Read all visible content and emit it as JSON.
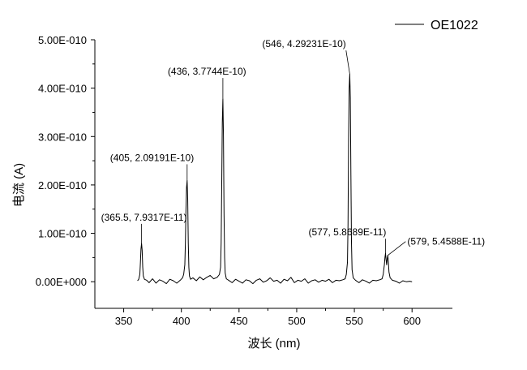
{
  "chart_data": {
    "type": "line",
    "xlabel": "波长 (nm)",
    "ylabel": "电流 (A)",
    "xlim": [
      325,
      635
    ],
    "ylim": [
      -5.5e-11,
      5e-10
    ],
    "x_ticks": [
      350,
      400,
      450,
      500,
      550,
      600
    ],
    "x_tick_labels": [
      "350",
      "400",
      "450",
      "500",
      "550",
      "600"
    ],
    "y_ticks": [
      0,
      1e-10,
      2e-10,
      3e-10,
      4e-10,
      5e-10
    ],
    "y_tick_labels": [
      "0.00E+000",
      "1.00E-010",
      "2.00E-010",
      "3.00E-010",
      "4.00E-010",
      "5.00E-010"
    ],
    "grid": false,
    "legend_position": "top-right",
    "series": [
      {
        "name": "OE1022",
        "color": "#000000",
        "x": [
          362,
          363,
          364,
          364.5,
          365,
          365.5,
          366,
          366.5,
          367,
          368,
          370,
          372,
          375,
          378,
          381,
          384,
          387,
          390,
          393,
          396,
          399,
          401,
          402,
          403,
          403.5,
          404,
          404.5,
          405,
          405.5,
          406,
          406.5,
          407,
          408,
          410,
          413,
          416,
          419,
          422,
          425,
          428,
          431,
          433,
          434,
          434.5,
          435,
          435.5,
          436,
          436.5,
          437,
          437.5,
          438,
          439,
          441,
          444,
          447,
          450,
          453,
          456,
          459,
          462,
          465,
          468,
          471,
          474,
          477,
          480,
          483,
          486,
          489,
          492,
          495,
          498,
          501,
          504,
          507,
          510,
          513,
          516,
          519,
          522,
          525,
          528,
          531,
          534,
          537,
          540,
          542,
          543,
          544,
          544.5,
          545,
          545.5,
          546,
          546.5,
          547,
          547.5,
          548,
          549,
          551,
          554,
          557,
          560,
          563,
          566,
          569,
          572,
          574,
          575,
          576,
          576.5,
          577,
          577.5,
          578,
          578.5,
          579,
          579.5,
          580,
          581,
          583,
          586,
          589,
          592,
          595,
          598,
          600
        ],
        "y": [
          2e-12,
          5e-12,
          1.5e-11,
          4e-11,
          6.8e-11,
          7.9317e-11,
          6.5e-11,
          3e-11,
          1.2e-11,
          5e-12,
          3e-12,
          -2e-12,
          6e-12,
          -3e-12,
          4e-12,
          1e-12,
          -4e-12,
          5e-12,
          2e-12,
          -3e-12,
          3e-12,
          8e-12,
          1.5e-11,
          3.5e-11,
          8e-11,
          1.5e-10,
          1.95e-10,
          2.09191e-10,
          1.7e-10,
          8e-11,
          3e-11,
          1.2e-11,
          5e-12,
          8e-12,
          2e-12,
          1e-11,
          4e-12,
          9e-12,
          1.3e-11,
          6e-12,
          9e-12,
          1.5e-11,
          3e-11,
          8e-11,
          2e-10,
          3.3e-10,
          3.7744e-10,
          3e-10,
          1.4e-10,
          5e-11,
          1.8e-11,
          6e-12,
          3e-12,
          -2e-12,
          5e-12,
          1e-12,
          -3e-12,
          4e-12,
          2e-12,
          -4e-12,
          3e-12,
          6e-12,
          -1e-12,
          2e-12,
          8e-12,
          1e-12,
          3e-12,
          -3e-12,
          5e-12,
          2e-12,
          9e-12,
          -2e-12,
          3e-12,
          1e-12,
          6e-12,
          -3e-12,
          2e-12,
          4e-12,
          -1e-12,
          3e-12,
          1e-12,
          5e-12,
          -2e-12,
          3e-12,
          2e-12,
          4e-12,
          6e-12,
          1.5e-11,
          4e-11,
          1.2e-10,
          3e-10,
          4e-10,
          4.29231e-10,
          3.8e-10,
          2.2e-10,
          8e-11,
          2.5e-11,
          8e-12,
          3e-12,
          -2e-12,
          4e-12,
          1e-12,
          -3e-12,
          3e-12,
          2e-12,
          4e-12,
          6e-12,
          1.5e-11,
          3.5e-11,
          5e-11,
          5.8689e-11,
          4.5e-11,
          3.5e-11,
          4.8e-11,
          5.4588e-11,
          4e-11,
          2e-11,
          8e-12,
          3e-12,
          1e-12,
          -3e-12,
          2e-12,
          0.0,
          1e-12,
          0.0
        ]
      }
    ],
    "annotations": [
      {
        "text": "(365.5, 7.9317E-11)",
        "x": 365.5,
        "y": 7.9317e-11
      },
      {
        "text": "(405, 2.09191E-10)",
        "x": 405,
        "y": 2.09191e-10
      },
      {
        "text": "(436, 3.7744E-10)",
        "x": 436,
        "y": 3.7744e-10
      },
      {
        "text": "(546, 4.29231E-10)",
        "x": 546,
        "y": 4.29231e-10
      },
      {
        "text": "(577, 5.8689E-11)",
        "x": 577,
        "y": 5.8689e-11
      },
      {
        "text": "(579, 5.4588E-11)",
        "x": 579,
        "y": 5.4588e-11
      }
    ]
  }
}
